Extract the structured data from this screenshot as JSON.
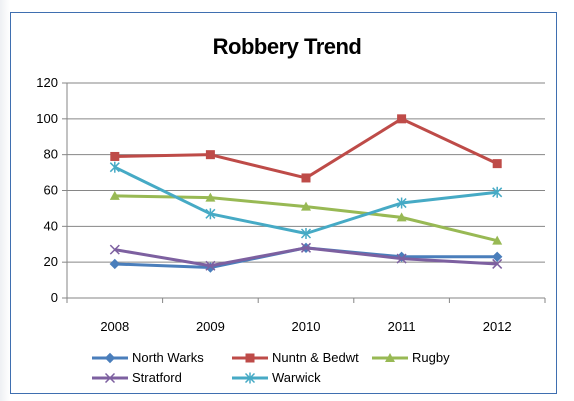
{
  "chart_data": {
    "type": "line",
    "title": "Robbery Trend",
    "categories": [
      "2008",
      "2009",
      "2010",
      "2011",
      "2012"
    ],
    "ylim": [
      0,
      120
    ],
    "yticks": [
      0,
      20,
      40,
      60,
      80,
      100,
      120
    ],
    "grid": true,
    "legend_position": "bottom",
    "series": [
      {
        "name": "North Warks",
        "color": "#4a7ebb",
        "marker": "diamond",
        "values": [
          19,
          17,
          28,
          23,
          23
        ]
      },
      {
        "name": "Nuntn & Bedwt",
        "color": "#be4b48",
        "marker": "square",
        "values": [
          79,
          80,
          67,
          100,
          75
        ]
      },
      {
        "name": "Rugby",
        "color": "#98b954",
        "marker": "triangle",
        "values": [
          57,
          56,
          51,
          45,
          32
        ]
      },
      {
        "name": "Stratford",
        "color": "#7d60a0",
        "marker": "x",
        "values": [
          27,
          18,
          28,
          22,
          19
        ]
      },
      {
        "name": "Warwick",
        "color": "#46aac5",
        "marker": "star",
        "values": [
          73,
          47,
          36,
          53,
          59
        ]
      }
    ]
  }
}
